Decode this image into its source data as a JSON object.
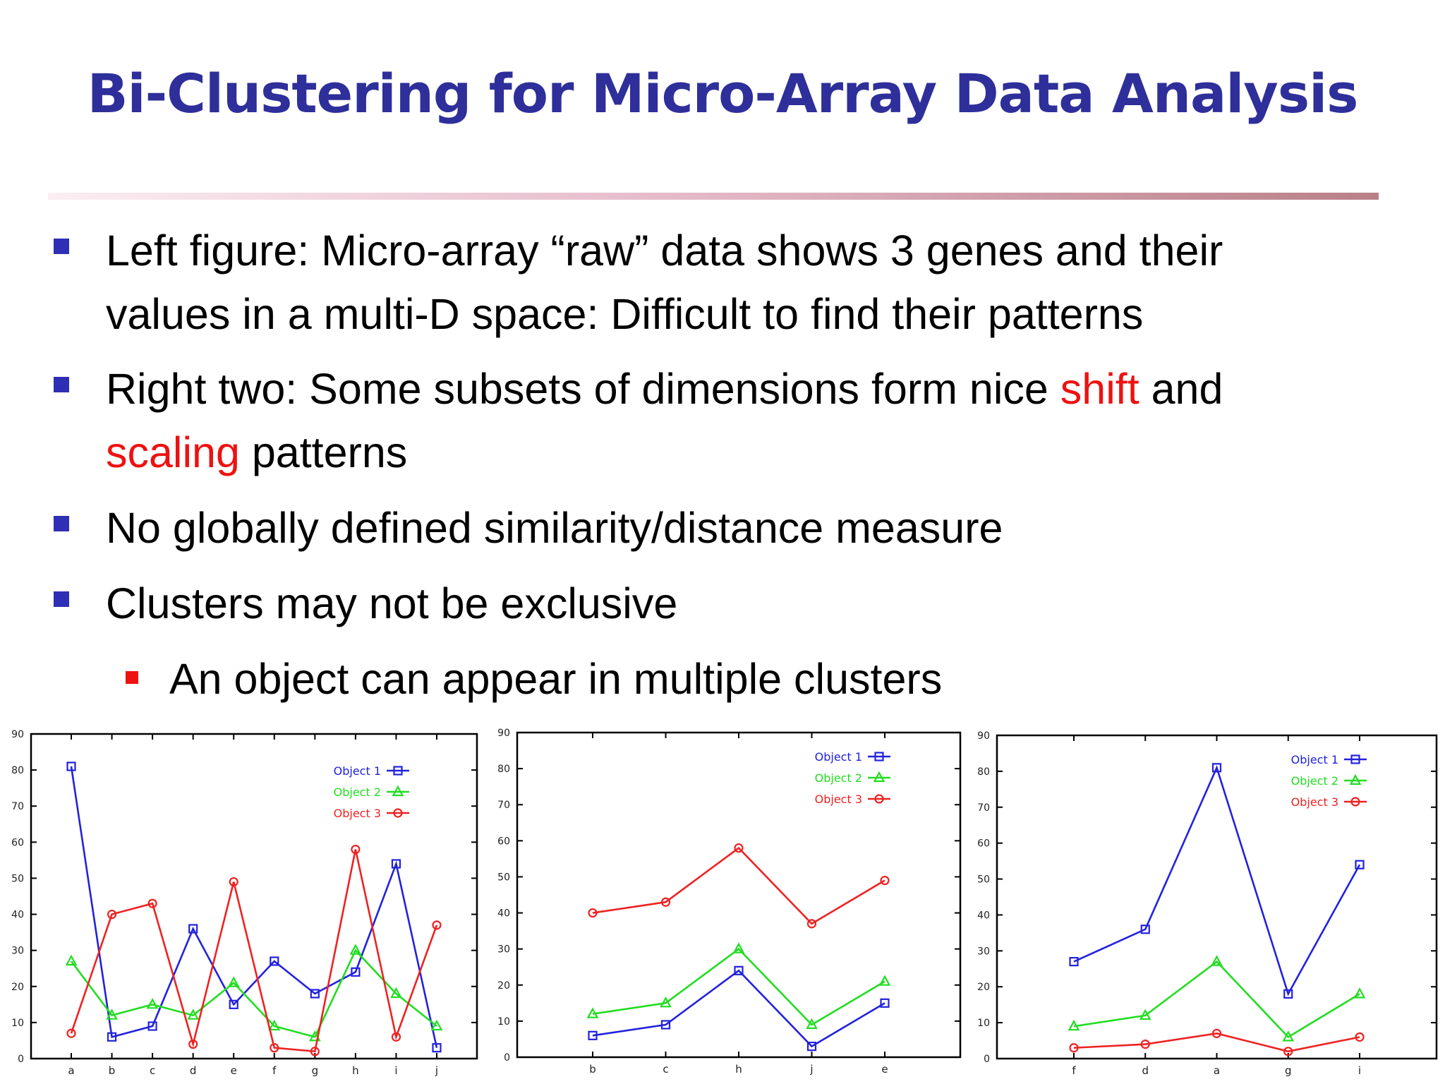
{
  "slide": {
    "title": "Bi-Clustering for Micro-Array Data Analysis",
    "bullets": [
      {
        "line1": "Left figure: Micro-array “raw” data shows 3 genes and their",
        "line2": "values in a multi-D space: Difficult to find their patterns"
      },
      {
        "line1_pre": "Right two: Some subsets of dimensions form nice ",
        "line1_red": "shift",
        "line1_post": " and",
        "line2_red": "scaling",
        "line2_post": " patterns"
      },
      {
        "line1": "No globally defined similarity/distance measure"
      },
      {
        "line1": "Clusters may not be exclusive"
      }
    ],
    "sub_bullets": [
      {
        "line1": "An object can appear in multiple clusters"
      }
    ]
  },
  "colors": {
    "title": "#2e2f9a",
    "bullet": "#2f2fb5",
    "sub_bullet": "#ee1111",
    "highlight": "#ee1111",
    "object1": "#2222dd",
    "object2": "#22dd22",
    "object3": "#ee2222"
  },
  "chart_data": [
    {
      "type": "line",
      "categories": [
        "a",
        "b",
        "c",
        "d",
        "e",
        "f",
        "g",
        "h",
        "i",
        "j"
      ],
      "series": [
        {
          "name": "Object 1",
          "marker": "square",
          "color": "#2222dd",
          "values": [
            81,
            6,
            9,
            36,
            15,
            27,
            18,
            24,
            54,
            3
          ]
        },
        {
          "name": "Object 2",
          "marker": "triangle",
          "color": "#22dd22",
          "values": [
            27,
            12,
            15,
            12,
            21,
            9,
            6,
            30,
            18,
            9
          ]
        },
        {
          "name": "Object 3",
          "marker": "circle",
          "color": "#ee2222",
          "values": [
            7,
            40,
            43,
            4,
            49,
            3,
            2,
            58,
            6,
            37
          ]
        }
      ],
      "yticks": [
        "0",
        "10",
        "20",
        "30",
        "40",
        "50",
        "60",
        "70",
        "80",
        "90"
      ],
      "ylim": [
        0,
        90
      ],
      "legend": "top-right",
      "grid": false
    },
    {
      "type": "line",
      "categories": [
        "b",
        "c",
        "h",
        "j",
        "e"
      ],
      "series": [
        {
          "name": "Object 1",
          "marker": "square",
          "color": "#2222dd",
          "values": [
            6,
            9,
            24,
            3,
            15
          ]
        },
        {
          "name": "Object 2",
          "marker": "triangle",
          "color": "#22dd22",
          "values": [
            12,
            15,
            30,
            9,
            21
          ]
        },
        {
          "name": "Object 3",
          "marker": "circle",
          "color": "#ee2222",
          "values": [
            40,
            43,
            58,
            37,
            49
          ]
        }
      ],
      "yticks": [
        "0",
        "10",
        "20",
        "30",
        "40",
        "50",
        "60",
        "70",
        "80",
        "90"
      ],
      "ylim": [
        0,
        90
      ],
      "legend": "top-right",
      "grid": false
    },
    {
      "type": "line",
      "categories": [
        "f",
        "d",
        "a",
        "g",
        "i"
      ],
      "series": [
        {
          "name": "Object 1",
          "marker": "square",
          "color": "#2222dd",
          "values": [
            27,
            36,
            81,
            18,
            54
          ]
        },
        {
          "name": "Object 2",
          "marker": "triangle",
          "color": "#22dd22",
          "values": [
            9,
            12,
            27,
            6,
            18
          ]
        },
        {
          "name": "Object 3",
          "marker": "circle",
          "color": "#ee2222",
          "values": [
            3,
            4,
            7,
            2,
            6
          ]
        }
      ],
      "yticks": [
        "0",
        "10",
        "20",
        "30",
        "40",
        "50",
        "60",
        "70",
        "80",
        "90"
      ],
      "ylim": [
        0,
        90
      ],
      "legend": "top-right",
      "grid": false
    }
  ]
}
